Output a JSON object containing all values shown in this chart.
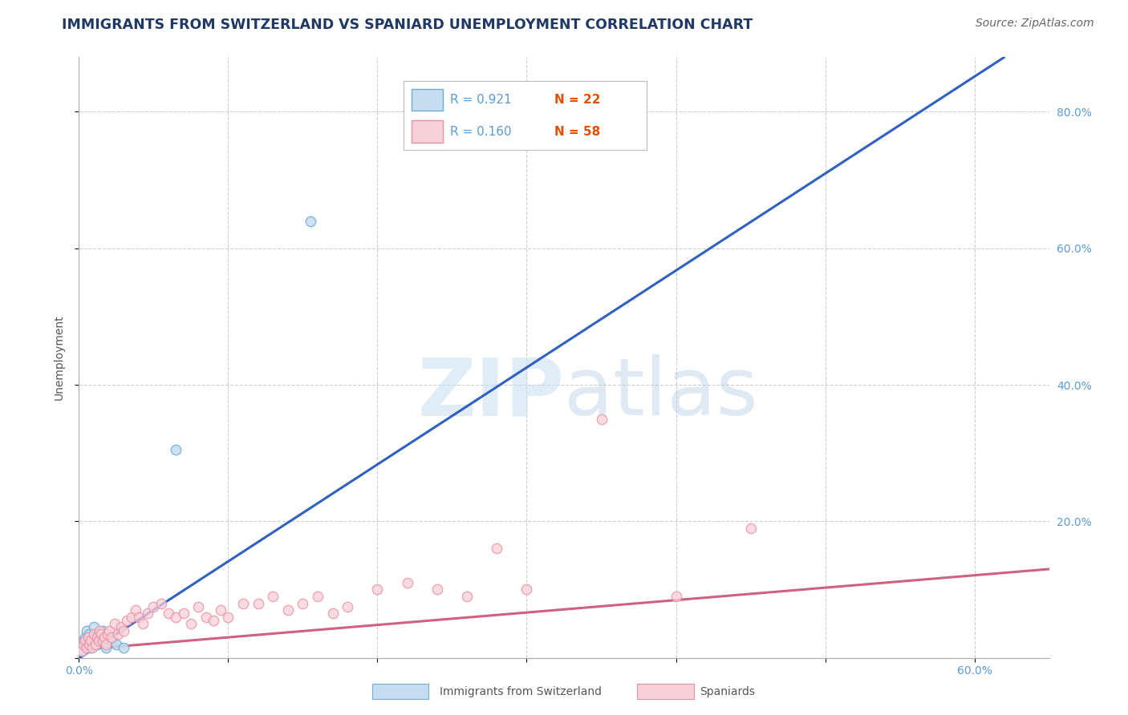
{
  "title": "IMMIGRANTS FROM SWITZERLAND VS SPANIARD UNEMPLOYMENT CORRELATION CHART",
  "source": "Source: ZipAtlas.com",
  "ylabel": "Unemployment",
  "xlim": [
    0.0,
    0.65
  ],
  "ylim": [
    0.0,
    0.88
  ],
  "xticks": [
    0.0,
    0.1,
    0.2,
    0.3,
    0.4,
    0.5,
    0.6
  ],
  "xtick_labels": [
    "0.0%",
    "",
    "",
    "",
    "",
    "",
    "60.0%"
  ],
  "yticks": [
    0.0,
    0.2,
    0.4,
    0.6,
    0.8
  ],
  "ytick_labels_right": [
    "",
    "20.0%",
    "40.0%",
    "60.0%",
    "80.0%"
  ],
  "blue_scatter_x": [
    0.002,
    0.003,
    0.004,
    0.005,
    0.005,
    0.006,
    0.007,
    0.008,
    0.009,
    0.01,
    0.01,
    0.012,
    0.013,
    0.015,
    0.016,
    0.018,
    0.02,
    0.022,
    0.025,
    0.03,
    0.065,
    0.155
  ],
  "blue_scatter_y": [
    0.01,
    0.025,
    0.03,
    0.015,
    0.04,
    0.02,
    0.035,
    0.015,
    0.025,
    0.03,
    0.045,
    0.02,
    0.035,
    0.025,
    0.04,
    0.015,
    0.03,
    0.025,
    0.02,
    0.015,
    0.305,
    0.64
  ],
  "pink_scatter_x": [
    0.002,
    0.003,
    0.004,
    0.005,
    0.006,
    0.007,
    0.008,
    0.009,
    0.01,
    0.011,
    0.012,
    0.013,
    0.014,
    0.015,
    0.016,
    0.017,
    0.018,
    0.019,
    0.02,
    0.022,
    0.024,
    0.026,
    0.028,
    0.03,
    0.032,
    0.035,
    0.038,
    0.04,
    0.043,
    0.046,
    0.05,
    0.055,
    0.06,
    0.065,
    0.07,
    0.075,
    0.08,
    0.085,
    0.09,
    0.095,
    0.1,
    0.11,
    0.12,
    0.13,
    0.14,
    0.15,
    0.16,
    0.17,
    0.18,
    0.2,
    0.22,
    0.24,
    0.26,
    0.28,
    0.3,
    0.35,
    0.4,
    0.45
  ],
  "pink_scatter_y": [
    0.01,
    0.02,
    0.025,
    0.015,
    0.03,
    0.02,
    0.025,
    0.015,
    0.035,
    0.02,
    0.03,
    0.025,
    0.04,
    0.035,
    0.025,
    0.03,
    0.02,
    0.035,
    0.04,
    0.03,
    0.05,
    0.035,
    0.045,
    0.04,
    0.055,
    0.06,
    0.07,
    0.06,
    0.05,
    0.065,
    0.075,
    0.08,
    0.065,
    0.06,
    0.065,
    0.05,
    0.075,
    0.06,
    0.055,
    0.07,
    0.06,
    0.08,
    0.08,
    0.09,
    0.07,
    0.08,
    0.09,
    0.065,
    0.075,
    0.1,
    0.11,
    0.1,
    0.09,
    0.16,
    0.1,
    0.35,
    0.09,
    0.19
  ],
  "blue_line_x": [
    -0.01,
    0.62
  ],
  "blue_line_y": [
    -0.015,
    0.88
  ],
  "pink_line_x": [
    -0.01,
    0.65
  ],
  "pink_line_y": [
    0.01,
    0.13
  ],
  "blue_scatter_color": "#6baed6",
  "blue_scatter_fill": "#c6dcf0",
  "pink_scatter_color": "#e88fa0",
  "pink_scatter_fill": "#f8d0da",
  "blue_line_color": "#3060c0",
  "pink_line_color": "#d06080",
  "legend_R1": "R = 0.921",
  "legend_N1": "N = 22",
  "legend_R2": "R = 0.160",
  "legend_N2": "N = 58",
  "legend_label1": "Immigrants from Switzerland",
  "legend_label2": "Spaniards",
  "watermark_zip": "ZIP",
  "watermark_atlas": "atlas",
  "background_color": "#ffffff",
  "grid_color": "#c8c8c8",
  "title_color": "#1f3864",
  "axis_label_color": "#555555",
  "tick_color": "#5b9bd5",
  "title_fontsize": 12.5,
  "source_fontsize": 10
}
